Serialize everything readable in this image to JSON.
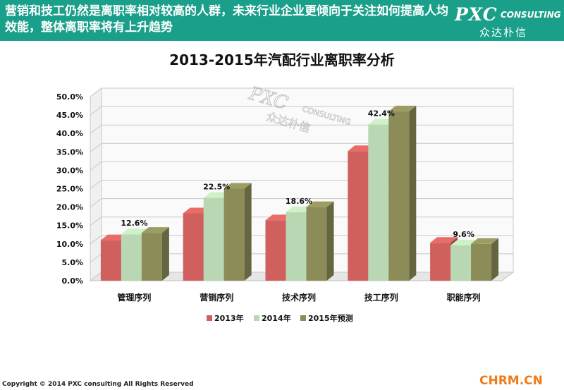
{
  "header": {
    "text": "营销和技工仍然是离职率相对较高的人群，未来行业企业更倾向于关注如何提高人均效能，整体离职率将有上升趋势"
  },
  "logo": {
    "main": "PXC",
    "sub": "CONSULTING",
    "cn": "众达朴信"
  },
  "watermark": {
    "main": "PXC",
    "sub": "CONSULTING",
    "cn": "众达朴信"
  },
  "footer": {
    "copyright": "Copyright © 2014  PXC consulting All Rights Reserved",
    "brand": "CHRM.CN"
  },
  "colors": {
    "header_bg": "#1a9f8a",
    "s2013": "#d0605e",
    "s2014": "#b9d7b3",
    "s2015": "#8c8c58"
  },
  "chart_data": {
    "type": "bar",
    "title": "2013-2015年汽配行业离职率分析",
    "categories": [
      "管理序列",
      "营销序列",
      "技术序列",
      "技工序列",
      "职能序列"
    ],
    "series": [
      {
        "name": "2013年",
        "values": [
          11.0,
          18.3,
          16.4,
          35.2,
          10.3
        ]
      },
      {
        "name": "2014年",
        "values": [
          12.6,
          22.5,
          18.6,
          42.4,
          9.6
        ]
      },
      {
        "name": "2015年预测",
        "values": [
          13.0,
          25.0,
          20.0,
          46.0,
          10.0
        ]
      }
    ],
    "data_labels": [
      "12.6%",
      "22.5%",
      "18.6%",
      "42.4%",
      "9.6%"
    ],
    "ylim": [
      0,
      50
    ],
    "yticks": [
      "0.0%",
      "5.0%",
      "10.0%",
      "15.0%",
      "20.0%",
      "25.0%",
      "30.0%",
      "35.0%",
      "40.0%",
      "45.0%",
      "50.0%"
    ],
    "legend_position": "bottom",
    "grid": true
  }
}
